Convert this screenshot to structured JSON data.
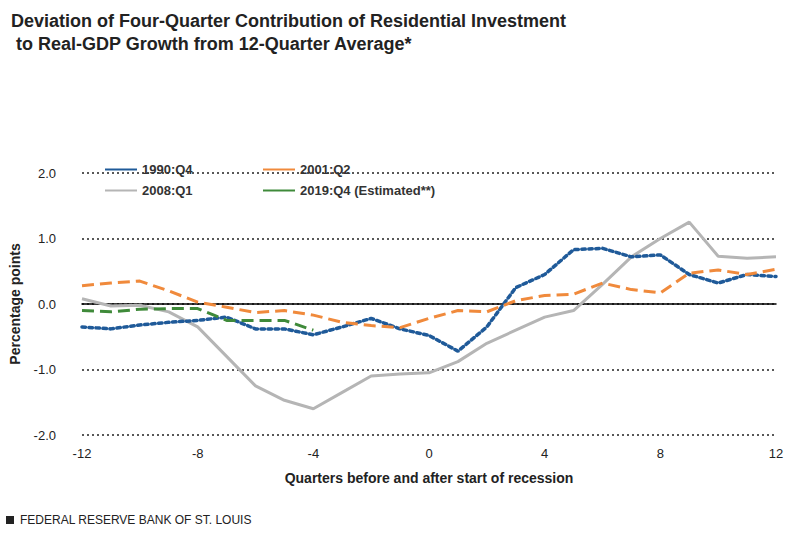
{
  "chart_data": {
    "type": "line",
    "title": "Deviation of Four-Quarter Contribution of Residential Investment to Real-GDP Growth from 12-Quarter Average*",
    "x_label": "Quarters before and after start of recession",
    "y_label": "Percentage points",
    "annotations": [
      "FEDERAL RESERVE BANK OF ST. LOUIS"
    ],
    "x": [
      -12,
      -11,
      -10,
      -9,
      -8,
      -7,
      -6,
      -5,
      -4,
      -3,
      -2,
      -1,
      0,
      1,
      2,
      3,
      4,
      5,
      6,
      7,
      8,
      9,
      10,
      11,
      12
    ],
    "series": [
      {
        "name": "1990:Q4",
        "color": "#1f5a99",
        "line_style": "dotted",
        "values": [
          -0.35,
          -0.38,
          -0.32,
          -0.28,
          -0.25,
          -0.2,
          -0.38,
          -0.38,
          -0.47,
          -0.35,
          -0.22,
          -0.38,
          -0.48,
          -0.72,
          -0.35,
          0.25,
          0.45,
          0.83,
          0.85,
          0.72,
          0.75,
          0.45,
          0.32,
          0.45,
          0.42
        ]
      },
      {
        "name": "2001:Q2",
        "color": "#f08a3c",
        "line_style": "dashed",
        "values": [
          0.28,
          0.32,
          0.35,
          0.2,
          0.03,
          -0.05,
          -0.13,
          -0.1,
          -0.17,
          -0.28,
          -0.33,
          -0.36,
          -0.22,
          -0.1,
          -0.12,
          0.05,
          0.13,
          0.15,
          0.32,
          0.22,
          0.17,
          0.47,
          0.52,
          0.45,
          0.53
        ]
      },
      {
        "name": "2008:Q1",
        "color": "#b5b5b5",
        "line_style": "solid",
        "values": [
          0.08,
          -0.03,
          -0.02,
          -0.12,
          -0.35,
          -0.8,
          -1.25,
          -1.47,
          -1.6,
          -1.35,
          -1.1,
          -1.07,
          -1.05,
          -0.88,
          -0.6,
          -0.4,
          -0.2,
          -0.1,
          0.3,
          0.72,
          1.0,
          1.25,
          0.73,
          0.7,
          0.72
        ]
      },
      {
        "name": "2019:Q4 (Estimated**)",
        "color": "#3f8a3a",
        "line_style": "dashed",
        "values": [
          -0.1,
          -0.12,
          -0.08,
          -0.07,
          -0.07,
          -0.25,
          -0.25,
          -0.25,
          -0.4,
          null,
          null,
          null,
          null,
          null,
          null,
          null,
          null,
          null,
          null,
          null,
          null,
          null,
          null,
          null,
          null
        ]
      }
    ],
    "xlim": [
      -12,
      12
    ],
    "xticks": [
      -12,
      -8,
      -4,
      0,
      4,
      8,
      12
    ],
    "ylim": [
      -2,
      2
    ],
    "yticks": [
      {
        "value": -2,
        "label": "-2.0"
      },
      {
        "value": -1,
        "label": "-1.0"
      },
      {
        "value": 0,
        "label": "0.0"
      },
      {
        "value": 1,
        "label": "1.0"
      },
      {
        "value": 2,
        "label": "2.0"
      }
    ],
    "grid": true
  }
}
